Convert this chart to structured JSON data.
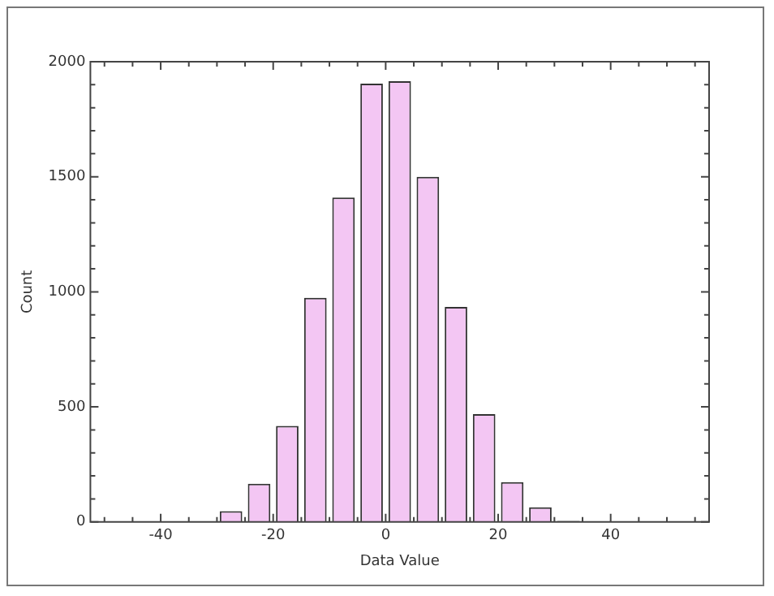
{
  "chart_data": {
    "type": "histogram",
    "xlabel": "Data Value",
    "ylabel": "Count",
    "bins": [
      -50,
      -45,
      -40,
      -35,
      -30,
      -25,
      -20,
      -15,
      -10,
      -5,
      0,
      5,
      10,
      15,
      20,
      25,
      30,
      35,
      40,
      45,
      50,
      55
    ],
    "values": [
      1,
      0,
      0,
      3,
      47,
      166,
      417,
      974,
      1410,
      1905,
      1915,
      1500,
      934,
      469,
      173,
      64,
      5,
      0,
      0,
      0,
      0
    ],
    "color": "#f3c6f3",
    "xlim": [
      -52.5,
      57.5
    ],
    "xticks": [
      -40,
      -20,
      0,
      20,
      40
    ],
    "ylim": [
      0,
      2000
    ],
    "yticks": [
      0,
      500,
      1000,
      1500,
      2000
    ],
    "grid": false,
    "legend": false
  }
}
